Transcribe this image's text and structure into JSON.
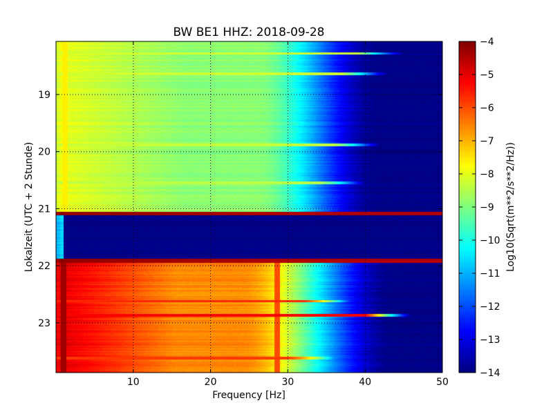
{
  "chart_data": {
    "type": "heatmap",
    "title": "BW BE1 HHZ: 2018-09-28",
    "xlabel": "Frequency [Hz]",
    "ylabel": "Lokalzeit (UTC + 2 Stunde)",
    "xlim": [
      0,
      50
    ],
    "ylim": [
      18.07,
      23.87
    ],
    "y_inverted": true,
    "grid": true,
    "x_ticks": [
      10,
      20,
      30,
      40,
      50
    ],
    "y_ticks": [
      19,
      20,
      21,
      22,
      23
    ],
    "colormap": "jet",
    "colorbar": {
      "label": "Log10(Sqrt(m**2/s**2/Hz))",
      "min": -14,
      "max": -4,
      "ticks": [
        -4,
        -5,
        -6,
        -7,
        -8,
        -9,
        -10,
        -11,
        -12,
        -13,
        -14
      ]
    },
    "time_bands": [
      {
        "start": 18.07,
        "end": 21.05,
        "low_freq_level": -8.0,
        "plateau_level": -8.9,
        "rolloff_start_hz": 26,
        "rolloff_end_hz": 42,
        "high_freq_level": -14
      },
      {
        "start": 21.05,
        "end": 21.12,
        "low_freq_level": -4.2,
        "plateau_level": -4.5,
        "rolloff_start_hz": 50,
        "rolloff_end_hz": 50,
        "high_freq_level": -5
      },
      {
        "start": 21.12,
        "end": 21.88,
        "low_freq_level": -10.5,
        "plateau_level": -14,
        "rolloff_start_hz": 0,
        "rolloff_end_hz": 3,
        "high_freq_level": -14
      },
      {
        "start": 21.88,
        "end": 21.95,
        "low_freq_level": -4.2,
        "plateau_level": -4.5,
        "rolloff_start_hz": 50,
        "rolloff_end_hz": 50,
        "high_freq_level": -5
      },
      {
        "start": 21.95,
        "end": 23.87,
        "low_freq_level": -5.0,
        "plateau_level": -6.6,
        "rolloff_start_hz": 24,
        "rolloff_end_hz": 44,
        "high_freq_level": -14
      }
    ],
    "highlight_lines": [
      {
        "time": 18.28,
        "level": -8.2,
        "extends_to_hz": 45
      },
      {
        "time": 18.64,
        "level": -8.2,
        "extends_to_hz": 43
      },
      {
        "time": 19.88,
        "level": -8.3,
        "extends_to_hz": 42
      },
      {
        "time": 20.55,
        "level": -8.4,
        "extends_to_hz": 40
      },
      {
        "time": 22.87,
        "level": -5.2,
        "extends_to_hz": 46
      },
      {
        "time": 22.62,
        "level": -5.6,
        "extends_to_hz": 38
      },
      {
        "time": 23.62,
        "level": -5.8,
        "extends_to_hz": 36
      }
    ],
    "vertical_features": [
      {
        "frequency_hz": 1.0,
        "level": -4.3,
        "time_range": [
          21.95,
          23.87
        ]
      },
      {
        "frequency_hz": 1.2,
        "level": -7.6,
        "time_range": [
          18.07,
          21.05
        ]
      },
      {
        "frequency_hz": 28.6,
        "level": -6.0,
        "time_range": [
          21.95,
          23.87
        ]
      }
    ]
  }
}
